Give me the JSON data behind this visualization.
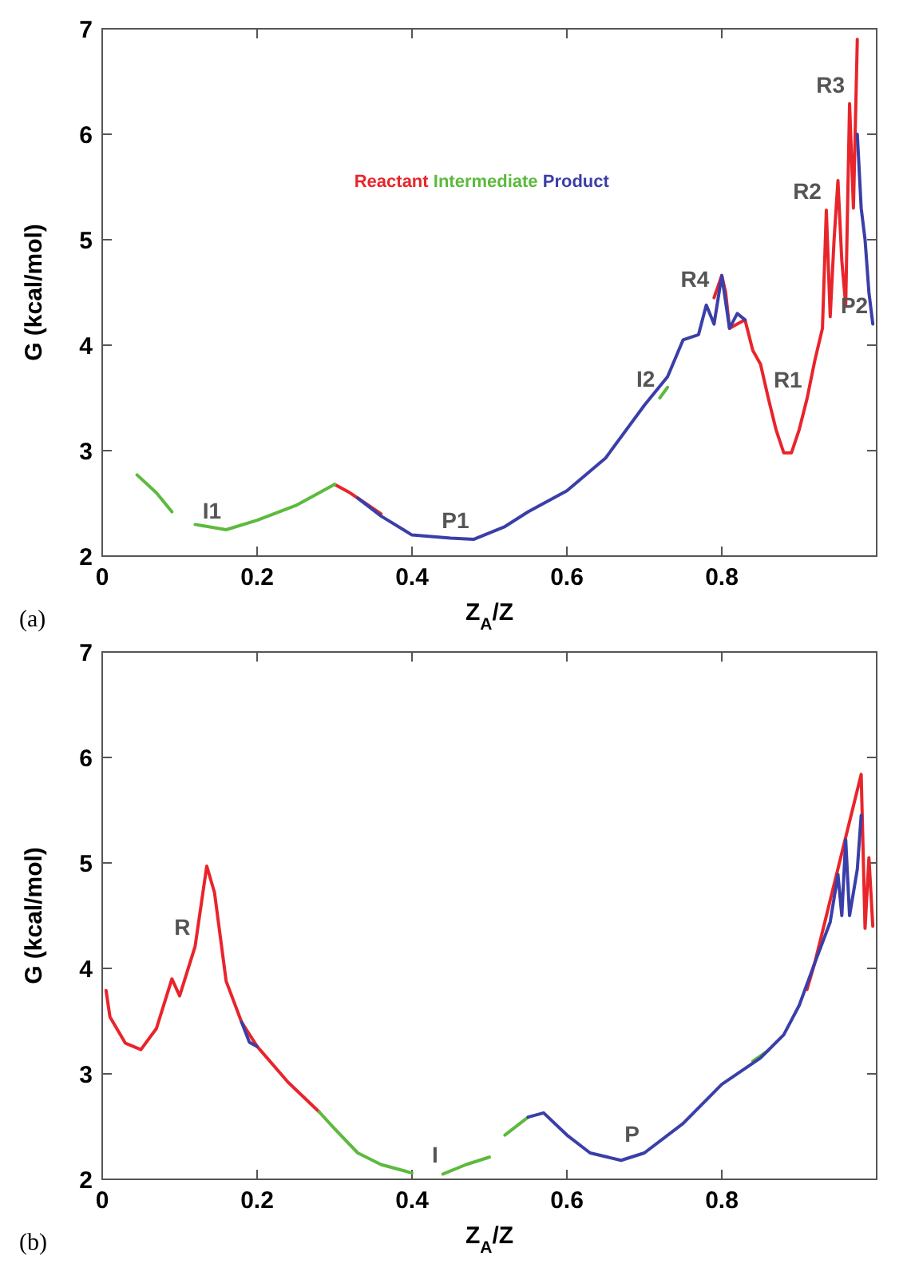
{
  "chart_data": [
    {
      "type": "line",
      "xlabel": "Z$_{A}$/Z",
      "ylabel": "G (kcal/mol)",
      "xlim": [
        0,
        1
      ],
      "ylim": [
        2,
        7
      ],
      "xticks": [
        0,
        0.2,
        0.4,
        0.6,
        0.8
      ],
      "yticks": [
        2,
        3,
        4,
        5,
        6,
        7
      ],
      "legend": "top",
      "series": [
        {
          "name": "Reactant",
          "color": "#e8252b",
          "x": [
            0.3,
            0.32,
            0.34,
            0.36,
            0.37,
            0.38,
            0.78,
            0.79,
            0.8,
            0.805,
            0.81,
            0.82,
            0.83,
            0.84,
            0.85,
            0.86,
            0.87,
            0.88,
            0.89,
            0.9,
            0.91,
            0.92,
            0.93,
            0.935,
            0.94,
            0.945,
            0.95,
            0.955,
            0.96,
            0.965,
            0.97,
            0.975
          ],
          "values": [
            2.68,
            2.6,
            2.5,
            2.4,
            null,
            null,
            null,
            4.45,
            4.66,
            4.5,
            4.16,
            4.2,
            4.24,
            3.95,
            3.82,
            3.5,
            3.2,
            2.98,
            2.98,
            3.2,
            3.49,
            3.85,
            4.16,
            5.28,
            4.27,
            5.0,
            5.56,
            4.8,
            4.38,
            6.29,
            5.3,
            6.9
          ]
        },
        {
          "name": "Intermediate",
          "color": "#5cba3c",
          "x": [
            0.045,
            0.07,
            0.09,
            0.1,
            0.12,
            0.16,
            0.2,
            0.25,
            0.3,
            0.7,
            0.72,
            0.73
          ],
          "values": [
            2.77,
            2.6,
            2.42,
            null,
            2.3,
            2.25,
            2.34,
            2.48,
            2.68,
            null,
            3.5,
            3.6
          ]
        },
        {
          "name": "Product",
          "color": "#3a3fa8",
          "x": [
            0.33,
            0.36,
            0.4,
            0.45,
            0.48,
            0.52,
            0.55,
            0.6,
            0.65,
            0.7,
            0.73,
            0.75,
            0.77,
            0.78,
            0.79,
            0.8,
            0.81,
            0.82,
            0.83,
            0.97,
            0.975,
            0.98,
            0.985,
            0.99,
            0.995
          ],
          "values": [
            2.55,
            2.38,
            2.2,
            2.17,
            2.16,
            2.28,
            2.42,
            2.62,
            2.93,
            3.43,
            3.7,
            4.05,
            4.1,
            4.38,
            4.2,
            4.66,
            4.16,
            4.3,
            4.24,
            null,
            6.0,
            5.3,
            5.0,
            4.5,
            4.2
          ]
        }
      ],
      "annotations": [
        {
          "text": "I1",
          "x": 0.16,
          "y": 2.25
        },
        {
          "text": "P1",
          "x": 0.48,
          "y": 2.16
        },
        {
          "text": "R4",
          "x": 0.79,
          "y": 4.45
        },
        {
          "text": "I2",
          "x": 0.72,
          "y": 3.5
        },
        {
          "text": "R1",
          "x": 0.91,
          "y": 3.49
        },
        {
          "text": "R2",
          "x": 0.935,
          "y": 5.28
        },
        {
          "text": "R3",
          "x": 0.965,
          "y": 6.29
        },
        {
          "text": "P2",
          "x": 0.995,
          "y": 4.2
        },
        "(a)"
      ]
    },
    {
      "type": "line",
      "xlabel": "Z$_{A}$/Z",
      "ylabel": "G (kcal/mol)",
      "xlim": [
        0,
        1
      ],
      "ylim": [
        2,
        7
      ],
      "xticks": [
        0,
        0.2,
        0.4,
        0.6,
        0.8
      ],
      "yticks": [
        2,
        3,
        4,
        5,
        6,
        7
      ],
      "series": [
        {
          "color": "#e8252b",
          "x": [
            0.005,
            0.01,
            0.03,
            0.05,
            0.07,
            0.09,
            0.1,
            0.12,
            0.135,
            0.145,
            0.16,
            0.18,
            0.2,
            0.24,
            0.28,
            0.9,
            0.91,
            0.92,
            0.98,
            0.985,
            0.99,
            0.995
          ],
          "values": [
            3.79,
            3.54,
            3.29,
            3.23,
            3.43,
            3.9,
            3.74,
            4.21,
            4.97,
            4.72,
            3.88,
            3.49,
            3.26,
            2.92,
            2.64,
            null,
            3.8,
            4.05,
            5.84,
            4.38,
            5.05,
            4.4
          ]
        },
        {
          "color": "#5cba3c",
          "x": [
            0.28,
            0.3,
            0.33,
            0.36,
            0.4,
            0.42,
            0.44,
            0.47,
            0.5,
            0.51,
            0.52,
            0.55,
            0.56,
            0.84,
            0.86
          ],
          "values": [
            2.64,
            2.48,
            2.25,
            2.14,
            2.06,
            null,
            2.05,
            2.14,
            2.21,
            null,
            2.42,
            2.59,
            null,
            3.12,
            3.22
          ]
        },
        {
          "color": "#3a3fa8",
          "x": [
            0.18,
            0.19,
            0.2,
            0.21,
            0.55,
            0.57,
            0.6,
            0.63,
            0.67,
            0.7,
            0.75,
            0.8,
            0.85,
            0.88,
            0.9,
            0.92,
            0.94,
            0.95,
            0.955,
            0.96,
            0.965,
            0.975,
            0.98
          ],
          "values": [
            3.49,
            3.3,
            3.26,
            null,
            2.59,
            2.63,
            2.42,
            2.25,
            2.18,
            2.25,
            2.53,
            2.9,
            3.15,
            3.37,
            3.65,
            4.05,
            4.44,
            4.89,
            4.5,
            5.22,
            4.5,
            4.94,
            5.45
          ]
        }
      ],
      "annotations": [
        {
          "text": "R",
          "x": 0.12,
          "y": 4.21
        },
        {
          "text": "I",
          "x": 0.44,
          "y": 2.05
        },
        {
          "text": "P",
          "x": 0.7,
          "y": 2.25
        },
        "(b)"
      ]
    }
  ]
}
